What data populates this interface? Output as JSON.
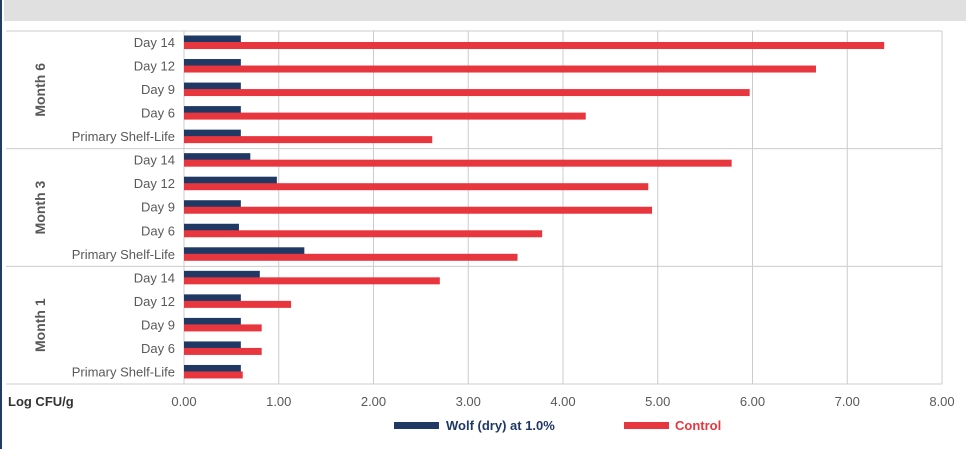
{
  "chart_data": {
    "type": "bar",
    "orientation": "horizontal",
    "xlabel": "Log CFU/g",
    "xlim": [
      0,
      8
    ],
    "xticks": [
      "0.00",
      "1.00",
      "2.00",
      "3.00",
      "4.00",
      "5.00",
      "6.00",
      "7.00",
      "8.00"
    ],
    "grid": true,
    "legend_position": "bottom",
    "groups": [
      {
        "name": "Month 6",
        "categories": [
          "Day 14",
          "Day 12",
          "Day 9",
          "Day 6",
          "Primary Shelf-Life"
        ]
      },
      {
        "name": "Month 3",
        "categories": [
          "Day 14",
          "Day 12",
          "Day 9",
          "Day 6",
          "Primary Shelf-Life"
        ]
      },
      {
        "name": "Month 1",
        "categories": [
          "Day 14",
          "Day 12",
          "Day 9",
          "Day 6",
          "Primary Shelf-Life"
        ]
      }
    ],
    "series": [
      {
        "name": "Wolf (dry) at 1.0%",
        "color": "#1f3864",
        "values": [
          0.6,
          0.6,
          0.6,
          0.6,
          0.6,
          0.7,
          0.98,
          0.6,
          0.58,
          1.27,
          0.8,
          0.6,
          0.6,
          0.6,
          0.6
        ]
      },
      {
        "name": "Control",
        "color": "#e8363f",
        "values": [
          7.39,
          6.67,
          5.97,
          4.24,
          2.62,
          5.78,
          4.9,
          4.94,
          3.78,
          3.52,
          2.7,
          1.13,
          0.82,
          0.82,
          0.62
        ]
      }
    ]
  },
  "colors": {
    "frame": "#223d63",
    "top_band": "#e0e0e0",
    "grid": "#cccccc",
    "text": "#595959"
  }
}
